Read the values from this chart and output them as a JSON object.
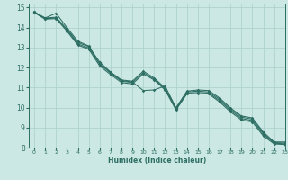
{
  "xlabel": "Humidex (Indice chaleur)",
  "xlim": [
    -0.5,
    23
  ],
  "ylim": [
    8,
    15.2
  ],
  "xticks": [
    0,
    1,
    2,
    3,
    4,
    5,
    6,
    7,
    8,
    9,
    10,
    11,
    12,
    13,
    14,
    15,
    16,
    17,
    18,
    19,
    20,
    21,
    22,
    23
  ],
  "yticks": [
    8,
    9,
    10,
    11,
    12,
    13,
    14,
    15
  ],
  "bg_color": "#cce8e4",
  "line_color": "#2d6e63",
  "grid_color": "#aacfca",
  "series": [
    [
      14.78,
      14.48,
      14.72,
      14.0,
      13.32,
      13.08,
      12.18,
      11.75,
      11.35,
      11.28,
      10.85,
      10.88,
      11.08,
      9.98,
      10.82,
      10.88,
      10.85,
      10.48,
      9.98,
      9.58,
      9.48,
      8.78,
      8.28,
      8.28
    ],
    [
      14.78,
      14.48,
      14.52,
      13.92,
      13.25,
      13.05,
      12.28,
      11.78,
      11.38,
      11.32,
      11.82,
      11.48,
      10.98,
      9.98,
      10.78,
      10.82,
      10.78,
      10.42,
      9.92,
      9.52,
      9.42,
      8.72,
      8.25,
      8.22
    ],
    [
      14.78,
      14.45,
      14.48,
      13.88,
      13.18,
      12.98,
      12.18,
      11.72,
      11.32,
      11.25,
      11.75,
      11.42,
      10.92,
      9.92,
      10.72,
      10.75,
      10.72,
      10.35,
      9.85,
      9.45,
      9.35,
      8.65,
      8.22,
      8.18
    ],
    [
      14.75,
      14.42,
      14.45,
      13.82,
      13.12,
      12.92,
      12.08,
      11.65,
      11.25,
      11.18,
      11.68,
      11.38,
      10.88,
      9.88,
      10.68,
      10.68,
      10.68,
      10.28,
      9.78,
      9.38,
      9.28,
      8.58,
      8.18,
      8.15
    ]
  ]
}
